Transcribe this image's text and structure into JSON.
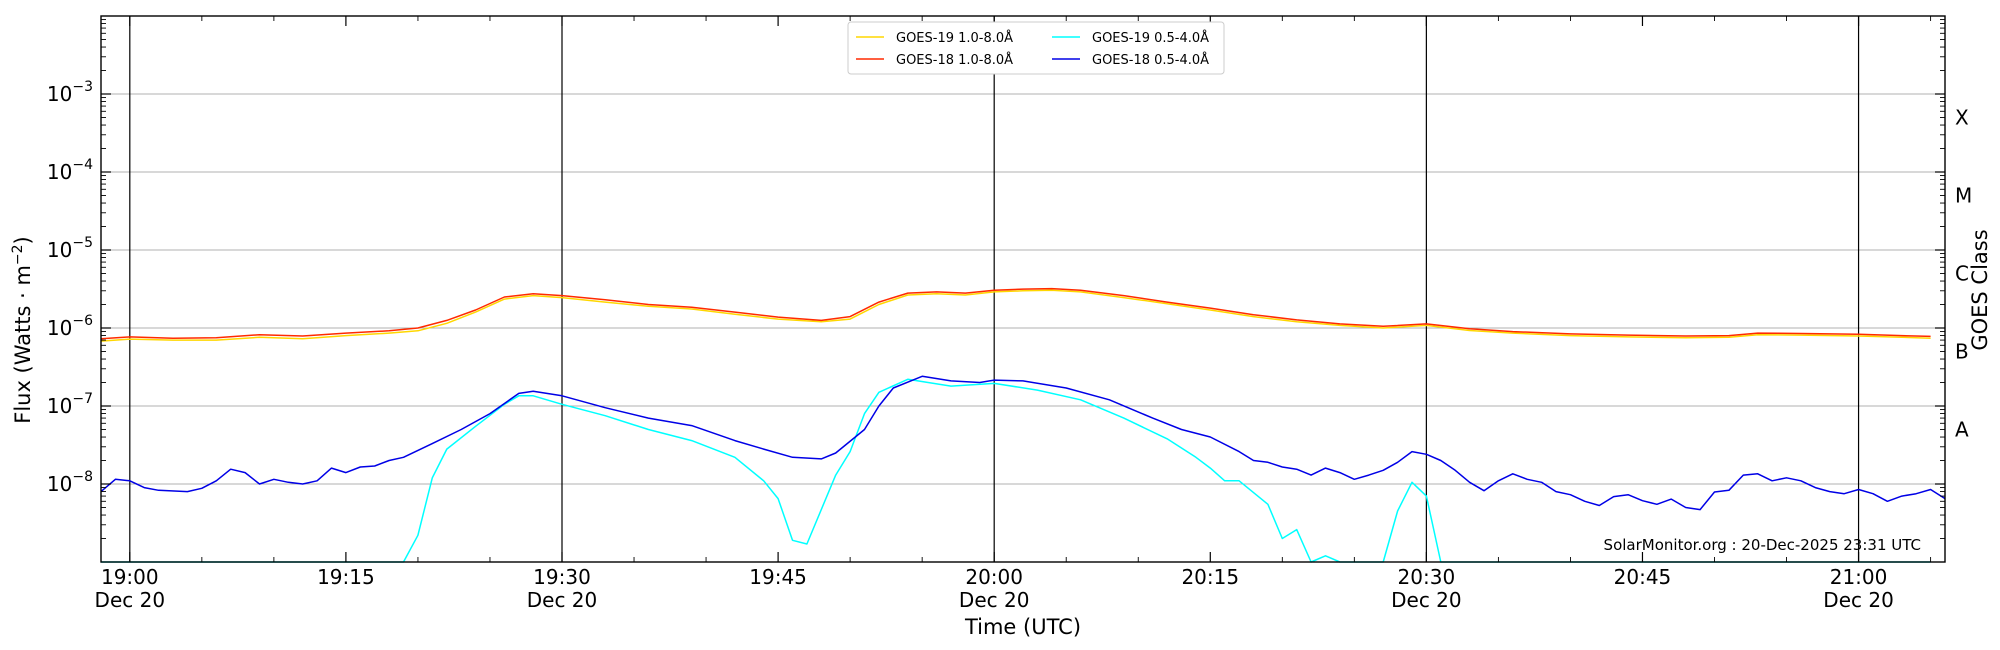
{
  "chart_data": {
    "type": "line",
    "xlabel": "Time (UTC)",
    "ylabel_main": "Flux (Watts · m",
    "ylabel_sup": "−2",
    "ylabel_end": ")",
    "right_axis_label": "GOES Class",
    "xlim": [
      "18:58",
      "21:06"
    ],
    "ylim": [
      1e-09,
      0.01
    ],
    "yscale": "log",
    "grid": "horizontal at each decade",
    "legend_position": "top-center",
    "credit": "SolarMonitor.org : 20-Dec-2025 23:31 UTC",
    "x_ticks": [
      {
        "time": "19:00",
        "label": "19:00",
        "sublabel": "Dec 20"
      },
      {
        "time": "19:15",
        "label": "19:15",
        "sublabel": ""
      },
      {
        "time": "19:30",
        "label": "19:30",
        "sublabel": "Dec 20"
      },
      {
        "time": "19:45",
        "label": "19:45",
        "sublabel": ""
      },
      {
        "time": "20:00",
        "label": "20:00",
        "sublabel": "Dec 20"
      },
      {
        "time": "20:15",
        "label": "20:15",
        "sublabel": ""
      },
      {
        "time": "20:30",
        "label": "20:30",
        "sublabel": "Dec 20"
      },
      {
        "time": "20:45",
        "label": "20:45",
        "sublabel": ""
      },
      {
        "time": "21:00",
        "label": "21:00",
        "sublabel": "Dec 20"
      }
    ],
    "vertical_lines": [
      "19:00",
      "19:30",
      "20:00",
      "20:30",
      "21:00"
    ],
    "y_ticks": [
      {
        "value": 1e-08,
        "base": "10",
        "exp": "−8"
      },
      {
        "value": 1e-07,
        "base": "10",
        "exp": "−7"
      },
      {
        "value": 1e-06,
        "base": "10",
        "exp": "−6"
      },
      {
        "value": 1e-05,
        "base": "10",
        "exp": "−5"
      },
      {
        "value": 0.0001,
        "base": "10",
        "exp": "−4"
      },
      {
        "value": 0.001,
        "base": "10",
        "exp": "−3"
      }
    ],
    "goes_classes": [
      {
        "label": "A",
        "value": 5e-08
      },
      {
        "label": "B",
        "value": 5e-07
      },
      {
        "label": "C",
        "value": 5e-06
      },
      {
        "label": "M",
        "value": 5e-05
      },
      {
        "label": "X",
        "value": 0.0005
      }
    ],
    "series": [
      {
        "name": "GOES-19 1.0-8.0Å",
        "color": "#ffd700",
        "points": [
          [
            "18:58",
            6.8e-07
          ],
          [
            "19:00",
            7.2e-07
          ],
          [
            "19:03",
            7e-07
          ],
          [
            "19:06",
            7e-07
          ],
          [
            "19:09",
            7.6e-07
          ],
          [
            "19:12",
            7.3e-07
          ],
          [
            "19:15",
            8e-07
          ],
          [
            "19:18",
            8.6e-07
          ],
          [
            "19:20",
            9.2e-07
          ],
          [
            "19:22",
            1.15e-06
          ],
          [
            "19:24",
            1.6e-06
          ],
          [
            "19:26",
            2.35e-06
          ],
          [
            "19:28",
            2.6e-06
          ],
          [
            "19:30",
            2.45e-06
          ],
          [
            "19:33",
            2.15e-06
          ],
          [
            "19:36",
            1.9e-06
          ],
          [
            "19:39",
            1.75e-06
          ],
          [
            "19:42",
            1.5e-06
          ],
          [
            "19:45",
            1.3e-06
          ],
          [
            "19:48",
            1.2e-06
          ],
          [
            "19:50",
            1.3e-06
          ],
          [
            "19:52",
            2e-06
          ],
          [
            "19:54",
            2.65e-06
          ],
          [
            "19:56",
            2.75e-06
          ],
          [
            "19:58",
            2.65e-06
          ],
          [
            "20:00",
            2.9e-06
          ],
          [
            "20:02",
            3e-06
          ],
          [
            "20:04",
            3.05e-06
          ],
          [
            "20:06",
            2.9e-06
          ],
          [
            "20:09",
            2.45e-06
          ],
          [
            "20:12",
            2.05e-06
          ],
          [
            "20:15",
            1.7e-06
          ],
          [
            "20:18",
            1.4e-06
          ],
          [
            "20:21",
            1.2e-06
          ],
          [
            "20:24",
            1.08e-06
          ],
          [
            "20:27",
            1e-06
          ],
          [
            "20:30",
            1.08e-06
          ],
          [
            "20:33",
            9.3e-07
          ],
          [
            "20:36",
            8.6e-07
          ],
          [
            "20:40",
            8e-07
          ],
          [
            "20:44",
            7.7e-07
          ],
          [
            "20:48",
            7.5e-07
          ],
          [
            "20:51",
            7.6e-07
          ],
          [
            "20:53",
            8.2e-07
          ],
          [
            "20:56",
            8.1e-07
          ],
          [
            "21:00",
            7.9e-07
          ],
          [
            "21:03",
            7.6e-07
          ],
          [
            "21:05",
            7.4e-07
          ]
        ]
      },
      {
        "name": "GOES-18 1.0-8.0Å",
        "color": "#ff2a00",
        "points": [
          [
            "18:58",
            7.3e-07
          ],
          [
            "19:00",
            7.7e-07
          ],
          [
            "19:03",
            7.4e-07
          ],
          [
            "19:06",
            7.5e-07
          ],
          [
            "19:09",
            8.2e-07
          ],
          [
            "19:12",
            7.9e-07
          ],
          [
            "19:15",
            8.6e-07
          ],
          [
            "19:18",
            9.2e-07
          ],
          [
            "19:20",
            1e-06
          ],
          [
            "19:22",
            1.25e-06
          ],
          [
            "19:24",
            1.7e-06
          ],
          [
            "19:26",
            2.5e-06
          ],
          [
            "19:28",
            2.75e-06
          ],
          [
            "19:30",
            2.6e-06
          ],
          [
            "19:33",
            2.3e-06
          ],
          [
            "19:36",
            2e-06
          ],
          [
            "19:39",
            1.85e-06
          ],
          [
            "19:42",
            1.6e-06
          ],
          [
            "19:45",
            1.38e-06
          ],
          [
            "19:48",
            1.25e-06
          ],
          [
            "19:50",
            1.4e-06
          ],
          [
            "19:52",
            2.15e-06
          ],
          [
            "19:54",
            2.8e-06
          ],
          [
            "19:56",
            2.9e-06
          ],
          [
            "19:58",
            2.8e-06
          ],
          [
            "20:00",
            3.05e-06
          ],
          [
            "20:02",
            3.15e-06
          ],
          [
            "20:04",
            3.2e-06
          ],
          [
            "20:06",
            3.05e-06
          ],
          [
            "20:09",
            2.6e-06
          ],
          [
            "20:12",
            2.15e-06
          ],
          [
            "20:15",
            1.8e-06
          ],
          [
            "20:18",
            1.48e-06
          ],
          [
            "20:21",
            1.27e-06
          ],
          [
            "20:24",
            1.13e-06
          ],
          [
            "20:27",
            1.05e-06
          ],
          [
            "20:30",
            1.13e-06
          ],
          [
            "20:33",
            9.8e-07
          ],
          [
            "20:36",
            9e-07
          ],
          [
            "20:40",
            8.4e-07
          ],
          [
            "20:44",
            8.1e-07
          ],
          [
            "20:48",
            7.9e-07
          ],
          [
            "20:51",
            8e-07
          ],
          [
            "20:53",
            8.6e-07
          ],
          [
            "20:56",
            8.5e-07
          ],
          [
            "21:00",
            8.3e-07
          ],
          [
            "21:03",
            8e-07
          ],
          [
            "21:05",
            7.8e-07
          ]
        ]
      },
      {
        "name": "GOES-19 0.5-4.0Å",
        "color": "#00ffff",
        "points": [
          [
            "18:58",
            1e-09
          ],
          [
            "19:19",
            1e-09
          ],
          [
            "19:20",
            2.2e-09
          ],
          [
            "19:21",
            1.2e-08
          ],
          [
            "19:22",
            2.8e-08
          ],
          [
            "19:24",
            5.5e-08
          ],
          [
            "19:26",
            1.05e-07
          ],
          [
            "19:27",
            1.35e-07
          ],
          [
            "19:28",
            1.35e-07
          ],
          [
            "19:30",
            1.05e-07
          ],
          [
            "19:33",
            7.5e-08
          ],
          [
            "19:36",
            5e-08
          ],
          [
            "19:39",
            3.6e-08
          ],
          [
            "19:42",
            2.2e-08
          ],
          [
            "19:44",
            1.1e-08
          ],
          [
            "19:45",
            6.5e-09
          ],
          [
            "19:46",
            1.9e-09
          ],
          [
            "19:47",
            1.7e-09
          ],
          [
            "19:49",
            1.3e-08
          ],
          [
            "19:50",
            2.6e-08
          ],
          [
            "19:51",
            8e-08
          ],
          [
            "19:52",
            1.5e-07
          ],
          [
            "19:54",
            2.2e-07
          ],
          [
            "19:57",
            1.8e-07
          ],
          [
            "20:00",
            1.95e-07
          ],
          [
            "20:03",
            1.6e-07
          ],
          [
            "20:06",
            1.2e-07
          ],
          [
            "20:09",
            7e-08
          ],
          [
            "20:12",
            3.8e-08
          ],
          [
            "20:14",
            2.2e-08
          ],
          [
            "20:15",
            1.6e-08
          ],
          [
            "20:16",
            1.1e-08
          ],
          [
            "20:17",
            1.1e-08
          ],
          [
            "20:19",
            5.5e-09
          ],
          [
            "20:20",
            2e-09
          ],
          [
            "20:21",
            2.6e-09
          ],
          [
            "20:22",
            1e-09
          ],
          [
            "20:23",
            1.2e-09
          ],
          [
            "20:24",
            1e-09
          ],
          [
            "20:27",
            1e-09
          ],
          [
            "20:28",
            4.5e-09
          ],
          [
            "20:29",
            1.05e-08
          ],
          [
            "20:30",
            7e-09
          ],
          [
            "20:31",
            1e-09
          ],
          [
            "21:05",
            1e-09
          ]
        ]
      },
      {
        "name": "GOES-18 0.5-4.0Å",
        "color": "#0000e6",
        "points": [
          [
            "18:58",
            8e-09
          ],
          [
            "18:59",
            1.15e-08
          ],
          [
            "19:00",
            1.1e-08
          ],
          [
            "19:01",
            9e-09
          ],
          [
            "19:02",
            8.3e-09
          ],
          [
            "19:04",
            8e-09
          ],
          [
            "19:05",
            8.8e-09
          ],
          [
            "19:06",
            1.1e-08
          ],
          [
            "19:07",
            1.55e-08
          ],
          [
            "19:08",
            1.4e-08
          ],
          [
            "19:09",
            1e-08
          ],
          [
            "19:10",
            1.15e-08
          ],
          [
            "19:11",
            1.05e-08
          ],
          [
            "19:12",
            1e-08
          ],
          [
            "19:13",
            1.1e-08
          ],
          [
            "19:14",
            1.6e-08
          ],
          [
            "19:15",
            1.4e-08
          ],
          [
            "19:16",
            1.65e-08
          ],
          [
            "19:17",
            1.7e-08
          ],
          [
            "19:18",
            2e-08
          ],
          [
            "19:19",
            2.2e-08
          ],
          [
            "19:21",
            3.3e-08
          ],
          [
            "19:23",
            5e-08
          ],
          [
            "19:25",
            8e-08
          ],
          [
            "19:27",
            1.45e-07
          ],
          [
            "19:28",
            1.55e-07
          ],
          [
            "19:30",
            1.35e-07
          ],
          [
            "19:33",
            9.5e-08
          ],
          [
            "19:36",
            7e-08
          ],
          [
            "19:39",
            5.6e-08
          ],
          [
            "19:42",
            3.6e-08
          ],
          [
            "19:44",
            2.8e-08
          ],
          [
            "19:46",
            2.2e-08
          ],
          [
            "19:48",
            2.1e-08
          ],
          [
            "19:49",
            2.5e-08
          ],
          [
            "19:51",
            5e-08
          ],
          [
            "19:52",
            1e-07
          ],
          [
            "19:53",
            1.7e-07
          ],
          [
            "19:55",
            2.4e-07
          ],
          [
            "19:57",
            2.1e-07
          ],
          [
            "19:59",
            2e-07
          ],
          [
            "20:00",
            2.15e-07
          ],
          [
            "20:02",
            2.1e-07
          ],
          [
            "20:05",
            1.7e-07
          ],
          [
            "20:08",
            1.2e-07
          ],
          [
            "20:11",
            7e-08
          ],
          [
            "20:13",
            5e-08
          ],
          [
            "20:15",
            4e-08
          ],
          [
            "20:17",
            2.6e-08
          ],
          [
            "20:18",
            2e-08
          ],
          [
            "20:19",
            1.9e-08
          ],
          [
            "20:20",
            1.65e-08
          ],
          [
            "20:21",
            1.55e-08
          ],
          [
            "20:22",
            1.3e-08
          ],
          [
            "20:23",
            1.6e-08
          ],
          [
            "20:24",
            1.4e-08
          ],
          [
            "20:25",
            1.15e-08
          ],
          [
            "20:26",
            1.3e-08
          ],
          [
            "20:27",
            1.5e-08
          ],
          [
            "20:28",
            1.9e-08
          ],
          [
            "20:29",
            2.6e-08
          ],
          [
            "20:30",
            2.4e-08
          ],
          [
            "20:31",
            2e-08
          ],
          [
            "20:32",
            1.5e-08
          ],
          [
            "20:33",
            1.05e-08
          ],
          [
            "20:34",
            8.2e-09
          ],
          [
            "20:35",
            1.1e-08
          ],
          [
            "20:36",
            1.35e-08
          ],
          [
            "20:37",
            1.15e-08
          ],
          [
            "20:38",
            1.05e-08
          ],
          [
            "20:39",
            8e-09
          ],
          [
            "20:40",
            7.3e-09
          ],
          [
            "20:41",
            6e-09
          ],
          [
            "20:42",
            5.3e-09
          ],
          [
            "20:43",
            6.9e-09
          ],
          [
            "20:44",
            7.3e-09
          ],
          [
            "20:45",
            6.1e-09
          ],
          [
            "20:46",
            5.5e-09
          ],
          [
            "20:47",
            6.4e-09
          ],
          [
            "20:48",
            5e-09
          ],
          [
            "20:49",
            4.7e-09
          ],
          [
            "20:50",
            7.9e-09
          ],
          [
            "20:51",
            8.3e-09
          ],
          [
            "20:52",
            1.3e-08
          ],
          [
            "20:53",
            1.35e-08
          ],
          [
            "20:54",
            1.1e-08
          ],
          [
            "20:55",
            1.2e-08
          ],
          [
            "20:56",
            1.1e-08
          ],
          [
            "20:57",
            9e-09
          ],
          [
            "20:58",
            8e-09
          ],
          [
            "20:59",
            7.5e-09
          ],
          [
            "21:00",
            8.5e-09
          ],
          [
            "21:01",
            7.5e-09
          ],
          [
            "21:02",
            6e-09
          ],
          [
            "21:03",
            7e-09
          ],
          [
            "21:04",
            7.5e-09
          ],
          [
            "21:05",
            8.5e-09
          ],
          [
            "21:06",
            6.5e-09
          ]
        ]
      }
    ]
  }
}
